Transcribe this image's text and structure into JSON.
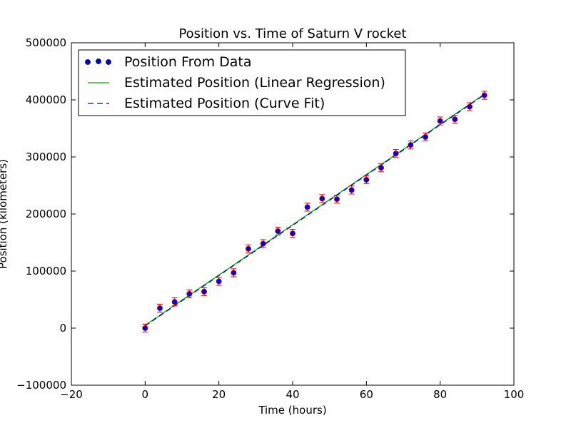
{
  "chart_data": {
    "type": "scatter",
    "title": "Position vs. Time of  Saturn V rocket",
    "xlabel": "Time (hours)",
    "ylabel": "Position (kilometers)",
    "xlim": [
      -20,
      100
    ],
    "ylim": [
      -100000,
      500000
    ],
    "xticks": [
      -20,
      0,
      20,
      40,
      60,
      80,
      100
    ],
    "xtick_labels": [
      "−20",
      "0",
      "20",
      "40",
      "60",
      "80",
      "100"
    ],
    "yticks": [
      -100000,
      0,
      100000,
      200000,
      300000,
      400000,
      500000
    ],
    "ytick_labels": [
      "−100000",
      "0",
      "100000",
      "200000",
      "300000",
      "400000",
      "500000"
    ],
    "grid": false,
    "legend_position": "upper-left",
    "series": [
      {
        "name": "Position From Data",
        "kind": "scatter-errorbar",
        "marker_color": "#0000cc",
        "marker_edge": "#dd0000",
        "errorbar_color": "#dd0000",
        "error": 7000,
        "x": [
          0,
          4,
          8,
          12,
          16,
          20,
          24,
          28,
          32,
          36,
          40,
          44,
          48,
          52,
          56,
          60,
          64,
          68,
          72,
          76,
          80,
          84,
          88,
          92
        ],
        "y": [
          0,
          35000,
          46000,
          60000,
          64000,
          82000,
          97000,
          139000,
          148000,
          170000,
          166000,
          212000,
          227000,
          226000,
          242000,
          260000,
          281000,
          306000,
          321000,
          335000,
          363000,
          366000,
          388000,
          408000
        ]
      },
      {
        "name": "Estimated Position (Linear Regression)",
        "kind": "line",
        "color": "#00aa00",
        "dash": "solid",
        "x": [
          0,
          92
        ],
        "y": [
          5000,
          410000
        ]
      },
      {
        "name": "Estimated Position (Curve Fit)",
        "kind": "line",
        "color": "#0000cc",
        "dash": "dashed",
        "x": [
          0,
          92
        ],
        "y": [
          4000,
          409000
        ]
      }
    ]
  }
}
